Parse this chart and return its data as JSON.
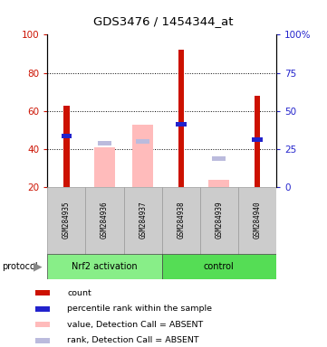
{
  "title": "GDS3476 / 1454344_at",
  "samples": [
    "GSM284935",
    "GSM284936",
    "GSM284937",
    "GSM284938",
    "GSM284939",
    "GSM284940"
  ],
  "bar_data": {
    "count": [
      63,
      null,
      null,
      92,
      null,
      68
    ],
    "percentile": [
      47,
      null,
      null,
      53,
      null,
      45
    ],
    "absent_value": [
      null,
      41,
      53,
      null,
      24,
      null
    ],
    "absent_rank": [
      null,
      43,
      44,
      null,
      35,
      null
    ]
  },
  "ylim_left": [
    20,
    100
  ],
  "ylim_right": [
    0,
    100
  ],
  "right_ticks": [
    0,
    25,
    50,
    75,
    100
  ],
  "right_tick_labels": [
    "0",
    "25",
    "50",
    "75",
    "100%"
  ],
  "left_ticks": [
    20,
    40,
    60,
    80,
    100
  ],
  "dotted_lines": [
    40,
    60,
    80
  ],
  "colors": {
    "count_bar": "#cc1100",
    "percentile_bar": "#2222cc",
    "absent_value_bar": "#ffbbbb",
    "absent_rank_bar": "#bbbbdd",
    "left_axis": "#cc1100",
    "right_axis": "#2222cc",
    "bg_xlabel": "#cccccc",
    "bg_xlabel_border": "#999999",
    "group_nrf2": "#88ee88",
    "group_control": "#55dd55"
  },
  "legend_items": [
    {
      "label": "count",
      "color": "#cc1100"
    },
    {
      "label": "percentile rank within the sample",
      "color": "#2222cc"
    },
    {
      "label": "value, Detection Call = ABSENT",
      "color": "#ffbbbb"
    },
    {
      "label": "rank, Detection Call = ABSENT",
      "color": "#bbbbdd"
    }
  ]
}
